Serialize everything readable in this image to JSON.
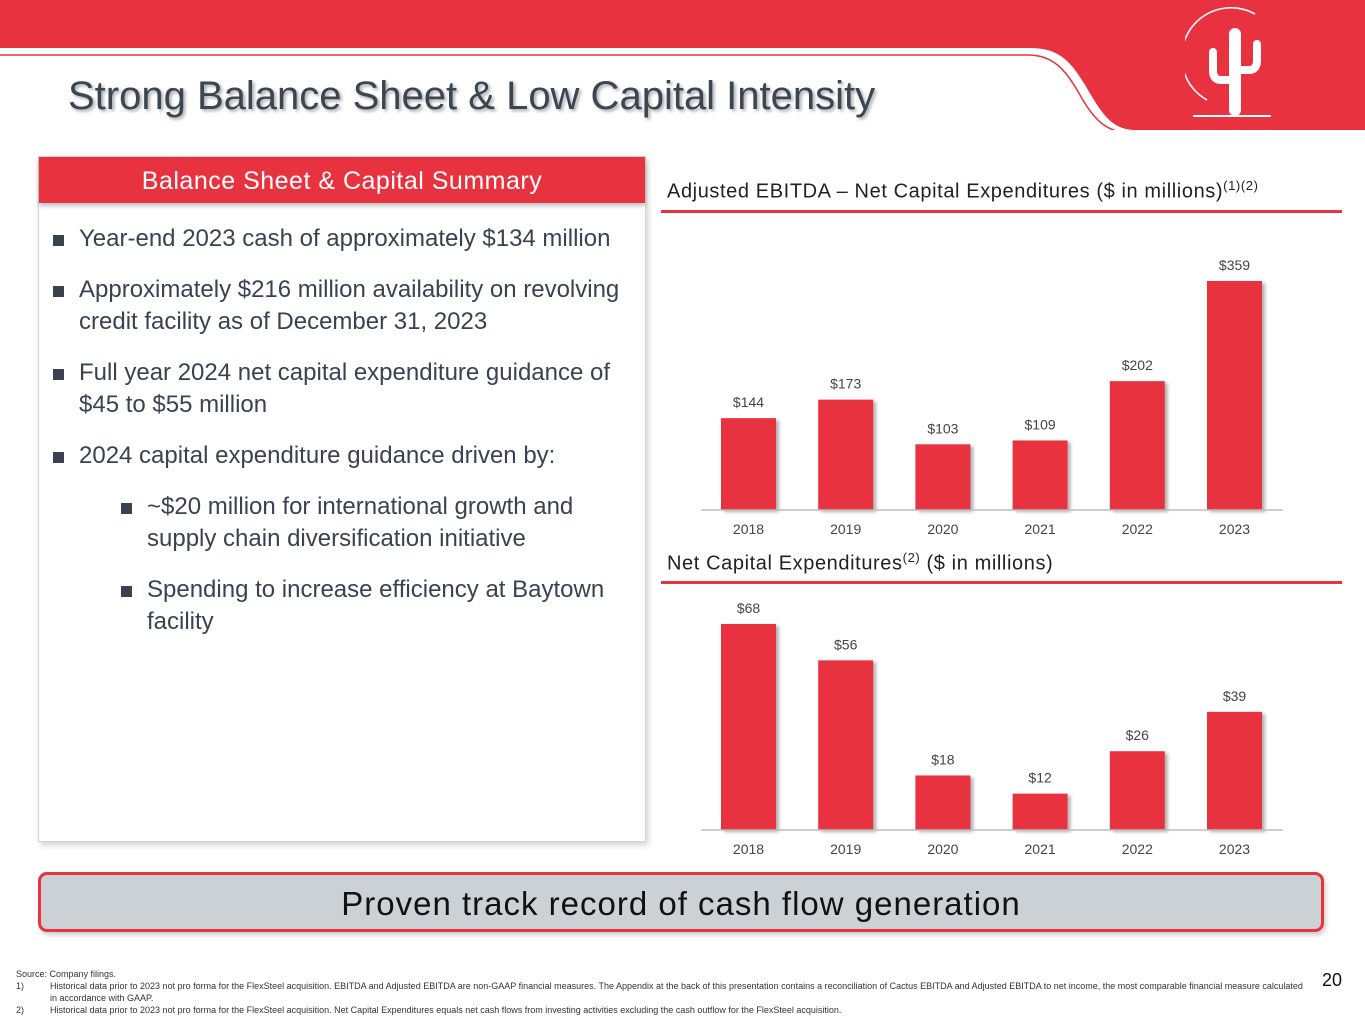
{
  "title": "Strong Balance Sheet & Low Capital Intensity",
  "colors": {
    "brand_red": "#e8323f",
    "text_dark": "#3a4250",
    "banner_bg": "#ccd1d6"
  },
  "panel": {
    "heading": "Balance Sheet & Capital Summary",
    "bullets": [
      "Year-end 2023 cash of approximately $134 million",
      "Approximately $216 million availability on revolving credit facility as of December 31, 2023",
      "Full year 2024 net capital expenditure guidance of $45 to $55 million",
      "2024 capital expenditure guidance driven by:"
    ],
    "sub_bullets": [
      "~$20 million for international growth and supply chain diversification initiative",
      "Spending to increase efficiency at Baytown facility"
    ]
  },
  "chart_data": [
    {
      "type": "bar",
      "title": "Adjusted EBITDA – Net Capital Expenditures ($ in millions)",
      "title_superscript": "(1)(2)",
      "categories": [
        "2018",
        "2019",
        "2020",
        "2021",
        "2022",
        "2023"
      ],
      "values": [
        144,
        173,
        103,
        109,
        202,
        359
      ],
      "labels": [
        "$144",
        "$173",
        "$103",
        "$109",
        "$202",
        "$359"
      ],
      "ylim": [
        0,
        359
      ],
      "xlabel": "",
      "ylabel": "",
      "grid": false
    },
    {
      "type": "bar",
      "title": "Net Capital Expenditures",
      "title_superscript": "(2)",
      "title_suffix": "($ in millions)",
      "categories": [
        "2018",
        "2019",
        "2020",
        "2021",
        "2022",
        "2023"
      ],
      "values": [
        68,
        56,
        18,
        12,
        26,
        39
      ],
      "labels": [
        "$68",
        "$56",
        "$18",
        "$12",
        "$26",
        "$39"
      ],
      "ylim": [
        0,
        68
      ],
      "xlabel": "",
      "ylabel": "",
      "grid": false
    }
  ],
  "banner": "Proven track record of cash flow generation",
  "footnotes": {
    "source": "Source: Company filings.",
    "notes": [
      {
        "num": "1)",
        "text": "Historical data prior to 2023 not pro forma for the FlexSteel acquisition. EBITDA and Adjusted EBITDA are non-GAAP financial measures. The Appendix at the back of this presentation contains a reconciliation of Cactus EBITDA and Adjusted EBITDA to net income, the most comparable financial measure calculated in accordance with GAAP."
      },
      {
        "num": "2)",
        "text": "Historical data prior to 2023 not pro forma for the FlexSteel acquisition.  Net Capital Expenditures equals net cash flows from investing activities excluding the cash outflow for the FlexSteel acquisition."
      }
    ]
  },
  "page_number": "20"
}
